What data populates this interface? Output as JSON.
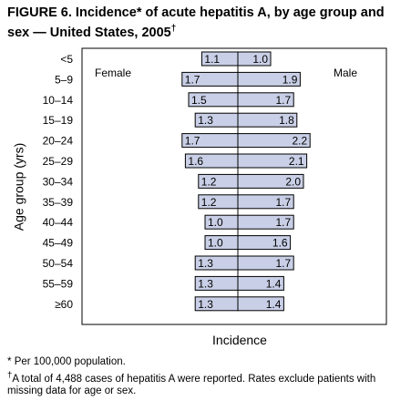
{
  "title": "FIGURE 6. Incidence* of acute hepatitis A, by age group and sex — United States, 2005",
  "title_mark": "†",
  "footnotes": {
    "asterisk_mark": "*",
    "asterisk": "Per 100,000 population.",
    "dagger_mark": "†",
    "dagger": "A total of 4,488 cases of hepatitis A were reported. Rates exclude patients with missing data for age or sex."
  },
  "chart_data": {
    "type": "bar",
    "subtype": "back-to-back population pyramid",
    "xlabel": "Incidence",
    "ylabel": "Age group (yrs)",
    "grid": false,
    "legend_placement": "none",
    "bar_color": "#c9cfe6",
    "bar_stroke": "#000000",
    "sides": {
      "left": "Female",
      "right": "Male"
    },
    "categories": [
      "<5",
      "5–9",
      "10–14",
      "15–19",
      "20–24",
      "25–29",
      "30–34",
      "35–39",
      "40–44",
      "45–49",
      "50–54",
      "55–59",
      "≥60"
    ],
    "series": [
      {
        "name": "Female",
        "values": [
          1.1,
          1.7,
          1.5,
          1.3,
          1.7,
          1.6,
          1.2,
          1.2,
          1.0,
          1.0,
          1.3,
          1.3,
          1.3
        ]
      },
      {
        "name": "Male",
        "values": [
          1.0,
          1.9,
          1.7,
          1.8,
          2.2,
          2.1,
          2.0,
          1.7,
          1.7,
          1.6,
          1.7,
          1.4,
          1.4
        ]
      }
    ],
    "data_labels": {
      "Female": [
        "1.1",
        "1.7",
        "1.5",
        "1.3",
        "1.7",
        "1.6",
        "1.2",
        "1.2",
        "1.0",
        "1.0",
        "1.3",
        "1.3",
        "1.3"
      ],
      "Male": [
        "1.0",
        "1.9",
        "1.7",
        "1.8",
        "2.2",
        "2.1",
        "2.0",
        "1.7",
        "1.7",
        "1.6",
        "1.7",
        "1.4",
        "1.4"
      ]
    }
  }
}
